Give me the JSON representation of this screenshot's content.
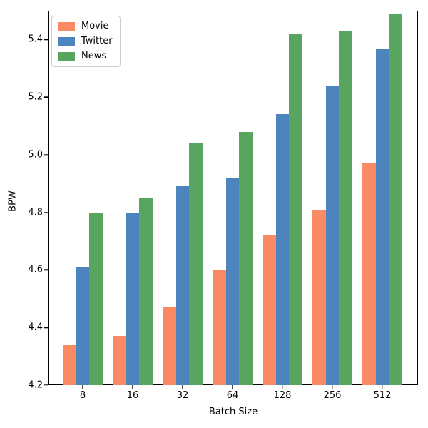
{
  "chart_data": {
    "type": "bar",
    "title": "",
    "xlabel": "Batch Size",
    "ylabel": "BPW",
    "categories": [
      "8",
      "16",
      "32",
      "64",
      "128",
      "256",
      "512"
    ],
    "series": [
      {
        "name": "Movie",
        "color": "#fa8a64",
        "values": [
          4.34,
          4.37,
          4.47,
          4.6,
          4.72,
          4.81,
          4.97
        ]
      },
      {
        "name": "Twitter",
        "color": "#4d84bd",
        "values": [
          4.61,
          4.8,
          4.89,
          4.92,
          5.14,
          5.24,
          5.37
        ]
      },
      {
        "name": "News",
        "color": "#57a55e",
        "values": [
          4.8,
          4.85,
          5.04,
          5.08,
          5.42,
          5.43,
          5.49
        ]
      }
    ],
    "ylim": [
      4.2,
      5.5
    ],
    "yticks": [
      4.2,
      4.4,
      4.6,
      4.8,
      5.0,
      5.2,
      5.4
    ],
    "grid": false,
    "legend_position": "upper left"
  }
}
